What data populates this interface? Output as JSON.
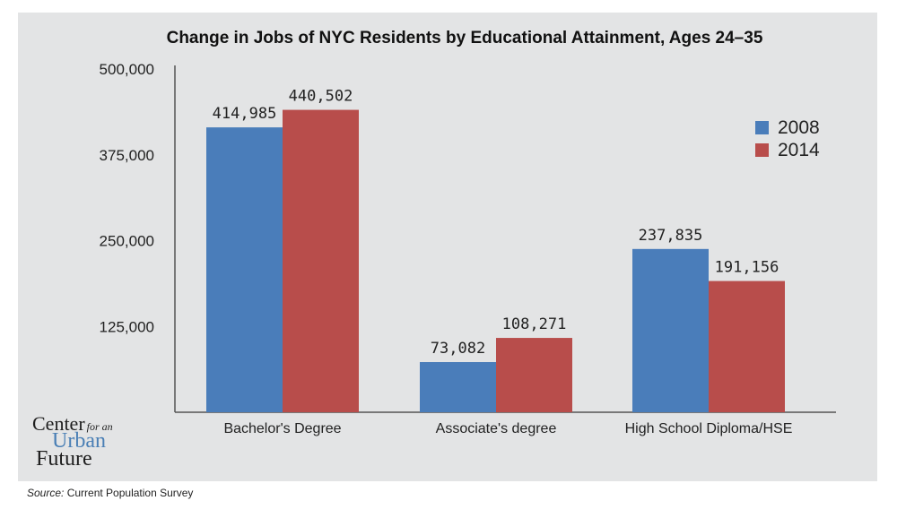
{
  "chart_data": {
    "type": "bar",
    "title": "Change in Jobs of NYC Residents by Educational Attainment, Ages 24–35",
    "categories": [
      "Bachelor's Degree",
      "Associate's degree",
      "High School Diploma/HSE"
    ],
    "series": [
      {
        "name": "2008",
        "values": [
          414985,
          73082,
          237835
        ],
        "labels": [
          "414,985",
          "73,082",
          "237,835"
        ],
        "color": "#4a7dba"
      },
      {
        "name": "2014",
        "values": [
          440502,
          108271,
          191156
        ],
        "labels": [
          "440,502",
          "108,271",
          "191,156"
        ],
        "color": "#b84d4b"
      }
    ],
    "yticks": [
      "500,000",
      "375,000",
      "250,000",
      "125,000"
    ],
    "ytick_values": [
      500000,
      375000,
      250000,
      125000
    ],
    "ylim": [
      0,
      500000
    ],
    "legend_position": "right",
    "grid": false
  },
  "logo": {
    "line1": "Center",
    "line1_small": "for an",
    "line2": "Urban",
    "line3": "Future"
  },
  "source": {
    "label": "Source:",
    "text": " Current Population Survey"
  }
}
